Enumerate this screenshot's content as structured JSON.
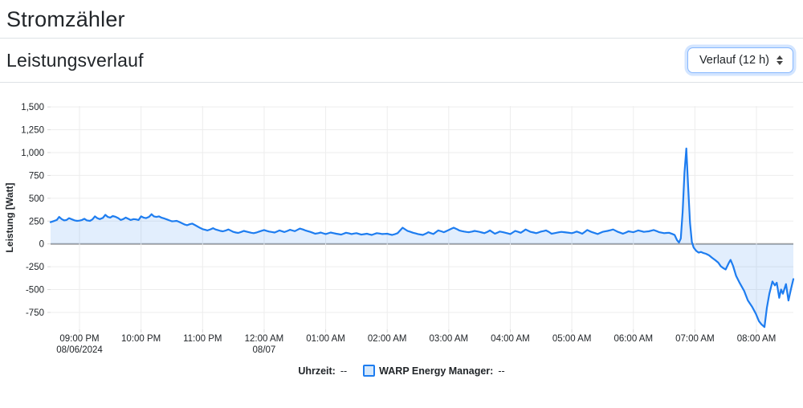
{
  "page": {
    "title": "Stromzähler"
  },
  "section": {
    "title": "Leistungsverlauf",
    "range_select": {
      "value": "Verlauf (12 h)"
    }
  },
  "chart_data": {
    "type": "area",
    "ylabel": "Leistung [Watt]",
    "ylim": [
      -935,
      1510
    ],
    "xlim_hours": [
      -0.47,
      11.6
    ],
    "grid": true,
    "zero_line": true,
    "colors": {
      "line": "#1e7df0",
      "fill": "rgba(30,125,240,0.13)",
      "legend_fill": "#d5e8fb",
      "grid": "#ededed",
      "zero_line": "#a3a3a3",
      "tick": "#d9d9d9"
    },
    "y_ticks": [
      {
        "value": 1500,
        "label": "1,500"
      },
      {
        "value": 1250,
        "label": "1,250"
      },
      {
        "value": 1000,
        "label": "1,000"
      },
      {
        "value": 750,
        "label": "750"
      },
      {
        "value": 500,
        "label": "500"
      },
      {
        "value": 250,
        "label": "250"
      },
      {
        "value": 0,
        "label": "0"
      },
      {
        "value": -250,
        "label": "-250"
      },
      {
        "value": -500,
        "label": "-500"
      },
      {
        "value": -750,
        "label": "-750"
      }
    ],
    "x_ticks": [
      {
        "h": 0,
        "label": "09:00 PM",
        "sub": "08/06/2024"
      },
      {
        "h": 1,
        "label": "10:00 PM"
      },
      {
        "h": 2,
        "label": "11:00 PM"
      },
      {
        "h": 3,
        "label": "12:00 AM",
        "sub": "08/07"
      },
      {
        "h": 4,
        "label": "01:00 AM"
      },
      {
        "h": 5,
        "label": "02:00 AM"
      },
      {
        "h": 6,
        "label": "03:00 AM"
      },
      {
        "h": 7,
        "label": "04:00 AM"
      },
      {
        "h": 8,
        "label": "05:00 AM"
      },
      {
        "h": 9,
        "label": "06:00 AM"
      },
      {
        "h": 10,
        "label": "07:00 AM"
      },
      {
        "h": 11,
        "label": "08:00 AM"
      }
    ],
    "legend": {
      "time_label": "Uhrzeit:",
      "time_value": "--",
      "series_label": "WARP Energy Manager:",
      "series_value": "--"
    },
    "series": [
      {
        "name": "WARP Energy Manager",
        "unit": "Watt",
        "points": [
          [
            -0.47,
            238
          ],
          [
            -0.42,
            250
          ],
          [
            -0.37,
            262
          ],
          [
            -0.33,
            295
          ],
          [
            -0.29,
            272
          ],
          [
            -0.25,
            258
          ],
          [
            -0.21,
            262
          ],
          [
            -0.17,
            282
          ],
          [
            -0.12,
            268
          ],
          [
            -0.08,
            258
          ],
          [
            -0.04,
            252
          ],
          [
            0,
            255
          ],
          [
            0.04,
            262
          ],
          [
            0.08,
            275
          ],
          [
            0.12,
            258
          ],
          [
            0.17,
            252
          ],
          [
            0.21,
            268
          ],
          [
            0.25,
            302
          ],
          [
            0.29,
            282
          ],
          [
            0.33,
            272
          ],
          [
            0.38,
            285
          ],
          [
            0.42,
            318
          ],
          [
            0.46,
            295
          ],
          [
            0.5,
            288
          ],
          [
            0.54,
            305
          ],
          [
            0.58,
            298
          ],
          [
            0.63,
            282
          ],
          [
            0.67,
            262
          ],
          [
            0.71,
            272
          ],
          [
            0.75,
            288
          ],
          [
            0.79,
            275
          ],
          [
            0.83,
            262
          ],
          [
            0.88,
            272
          ],
          [
            0.92,
            268
          ],
          [
            0.96,
            262
          ],
          [
            1,
            302
          ],
          [
            1.04,
            288
          ],
          [
            1.08,
            282
          ],
          [
            1.13,
            296
          ],
          [
            1.17,
            325
          ],
          [
            1.21,
            302
          ],
          [
            1.25,
            295
          ],
          [
            1.29,
            302
          ],
          [
            1.33,
            288
          ],
          [
            1.38,
            278
          ],
          [
            1.42,
            268
          ],
          [
            1.46,
            258
          ],
          [
            1.5,
            248
          ],
          [
            1.54,
            250
          ],
          [
            1.58,
            252
          ],
          [
            1.63,
            238
          ],
          [
            1.67,
            225
          ],
          [
            1.71,
            212
          ],
          [
            1.75,
            205
          ],
          [
            1.79,
            215
          ],
          [
            1.83,
            222
          ],
          [
            1.88,
            205
          ],
          [
            1.92,
            190
          ],
          [
            1.96,
            175
          ],
          [
            2,
            162
          ],
          [
            2.04,
            155
          ],
          [
            2.08,
            148
          ],
          [
            2.13,
            160
          ],
          [
            2.17,
            172
          ],
          [
            2.21,
            158
          ],
          [
            2.25,
            150
          ],
          [
            2.29,
            142
          ],
          [
            2.33,
            138
          ],
          [
            2.38,
            148
          ],
          [
            2.42,
            158
          ],
          [
            2.46,
            145
          ],
          [
            2.5,
            132
          ],
          [
            2.54,
            125
          ],
          [
            2.58,
            120
          ],
          [
            2.63,
            132
          ],
          [
            2.67,
            142
          ],
          [
            2.71,
            135
          ],
          [
            2.75,
            128
          ],
          [
            2.79,
            122
          ],
          [
            2.83,
            118
          ],
          [
            2.88,
            126
          ],
          [
            2.92,
            135
          ],
          [
            2.96,
            144
          ],
          [
            3,
            152
          ],
          [
            3.04,
            143
          ],
          [
            3.08,
            135
          ],
          [
            3.13,
            130
          ],
          [
            3.17,
            125
          ],
          [
            3.21,
            136
          ],
          [
            3.25,
            148
          ],
          [
            3.29,
            139
          ],
          [
            3.33,
            130
          ],
          [
            3.38,
            142
          ],
          [
            3.42,
            155
          ],
          [
            3.46,
            147
          ],
          [
            3.5,
            140
          ],
          [
            3.54,
            154
          ],
          [
            3.58,
            168
          ],
          [
            3.63,
            158
          ],
          [
            3.67,
            148
          ],
          [
            3.71,
            140
          ],
          [
            3.75,
            132
          ],
          [
            3.79,
            122
          ],
          [
            3.83,
            112
          ],
          [
            3.88,
            118
          ],
          [
            3.92,
            125
          ],
          [
            3.96,
            116
          ],
          [
            4,
            108
          ],
          [
            4.04,
            116
          ],
          [
            4.08,
            125
          ],
          [
            4.13,
            118
          ],
          [
            4.17,
            112
          ],
          [
            4.21,
            107
          ],
          [
            4.25,
            102
          ],
          [
            4.29,
            112
          ],
          [
            4.33,
            122
          ],
          [
            4.38,
            115
          ],
          [
            4.42,
            108
          ],
          [
            4.46,
            113
          ],
          [
            4.5,
            118
          ],
          [
            4.54,
            110
          ],
          [
            4.58,
            102
          ],
          [
            4.63,
            107
          ],
          [
            4.67,
            112
          ],
          [
            4.71,
            105
          ],
          [
            4.75,
            98
          ],
          [
            4.79,
            108
          ],
          [
            4.83,
            118
          ],
          [
            4.88,
            113
          ],
          [
            4.92,
            108
          ],
          [
            4.96,
            110
          ],
          [
            5,
            112
          ],
          [
            5.04,
            105
          ],
          [
            5.08,
            98
          ],
          [
            5.13,
            108
          ],
          [
            5.17,
            118
          ],
          [
            5.21,
            148
          ],
          [
            5.25,
            178
          ],
          [
            5.29,
            160
          ],
          [
            5.33,
            142
          ],
          [
            5.38,
            132
          ],
          [
            5.42,
            122
          ],
          [
            5.46,
            115
          ],
          [
            5.5,
            108
          ],
          [
            5.54,
            103
          ],
          [
            5.58,
            98
          ],
          [
            5.63,
            113
          ],
          [
            5.67,
            128
          ],
          [
            5.71,
            118
          ],
          [
            5.75,
            108
          ],
          [
            5.79,
            128
          ],
          [
            5.83,
            148
          ],
          [
            5.88,
            138
          ],
          [
            5.92,
            128
          ],
          [
            5.96,
            140
          ],
          [
            6,
            152
          ],
          [
            6.04,
            165
          ],
          [
            6.08,
            178
          ],
          [
            6.13,
            163
          ],
          [
            6.17,
            148
          ],
          [
            6.21,
            141
          ],
          [
            6.25,
            135
          ],
          [
            6.29,
            131
          ],
          [
            6.33,
            128
          ],
          [
            6.38,
            135
          ],
          [
            6.42,
            142
          ],
          [
            6.46,
            137
          ],
          [
            6.5,
            132
          ],
          [
            6.54,
            125
          ],
          [
            6.58,
            118
          ],
          [
            6.63,
            133
          ],
          [
            6.67,
            148
          ],
          [
            6.71,
            130
          ],
          [
            6.75,
            112
          ],
          [
            6.79,
            123
          ],
          [
            6.83,
            135
          ],
          [
            6.88,
            128
          ],
          [
            6.92,
            122
          ],
          [
            6.96,
            115
          ],
          [
            7,
            108
          ],
          [
            7.04,
            125
          ],
          [
            7.08,
            142
          ],
          [
            7.13,
            132
          ],
          [
            7.17,
            122
          ],
          [
            7.21,
            140
          ],
          [
            7.25,
            158
          ],
          [
            7.29,
            145
          ],
          [
            7.33,
            132
          ],
          [
            7.38,
            125
          ],
          [
            7.42,
            118
          ],
          [
            7.46,
            126
          ],
          [
            7.5,
            135
          ],
          [
            7.54,
            141
          ],
          [
            7.58,
            148
          ],
          [
            7.63,
            130
          ],
          [
            7.67,
            112
          ],
          [
            7.71,
            117
          ],
          [
            7.75,
            122
          ],
          [
            7.79,
            127
          ],
          [
            7.83,
            132
          ],
          [
            7.88,
            128
          ],
          [
            7.92,
            125
          ],
          [
            7.96,
            121
          ],
          [
            8,
            118
          ],
          [
            8.04,
            126
          ],
          [
            8.08,
            135
          ],
          [
            8.13,
            123
          ],
          [
            8.17,
            112
          ],
          [
            8.21,
            132
          ],
          [
            8.25,
            152
          ],
          [
            8.29,
            140
          ],
          [
            8.33,
            128
          ],
          [
            8.38,
            118
          ],
          [
            8.42,
            108
          ],
          [
            8.46,
            120
          ],
          [
            8.5,
            132
          ],
          [
            8.54,
            137
          ],
          [
            8.58,
            142
          ],
          [
            8.63,
            150
          ],
          [
            8.67,
            158
          ],
          [
            8.71,
            145
          ],
          [
            8.75,
            132
          ],
          [
            8.79,
            122
          ],
          [
            8.83,
            112
          ],
          [
            8.88,
            125
          ],
          [
            8.92,
            138
          ],
          [
            8.96,
            133
          ],
          [
            9,
            128
          ],
          [
            9.04,
            138
          ],
          [
            9.08,
            148
          ],
          [
            9.13,
            140
          ],
          [
            9.17,
            132
          ],
          [
            9.21,
            135
          ],
          [
            9.25,
            138
          ],
          [
            9.29,
            145
          ],
          [
            9.33,
            152
          ],
          [
            9.38,
            140
          ],
          [
            9.42,
            128
          ],
          [
            9.46,
            123
          ],
          [
            9.5,
            118
          ],
          [
            9.54,
            120
          ],
          [
            9.58,
            122
          ],
          [
            9.63,
            110
          ],
          [
            9.67,
            98
          ],
          [
            9.71,
            40
          ],
          [
            9.74,
            15
          ],
          [
            9.77,
            60
          ],
          [
            9.8,
            350
          ],
          [
            9.83,
            780
          ],
          [
            9.86,
            1045
          ],
          [
            9.89,
            620
          ],
          [
            9.92,
            230
          ],
          [
            9.95,
            20
          ],
          [
            9.98,
            -40
          ],
          [
            10.02,
            -75
          ],
          [
            10.06,
            -95
          ],
          [
            10.1,
            -88
          ],
          [
            10.14,
            -100
          ],
          [
            10.18,
            -108
          ],
          [
            10.23,
            -125
          ],
          [
            10.28,
            -152
          ],
          [
            10.33,
            -178
          ],
          [
            10.38,
            -205
          ],
          [
            10.42,
            -245
          ],
          [
            10.46,
            -265
          ],
          [
            10.5,
            -280
          ],
          [
            10.55,
            -210
          ],
          [
            10.58,
            -175
          ],
          [
            10.62,
            -240
          ],
          [
            10.67,
            -350
          ],
          [
            10.73,
            -430
          ],
          [
            10.8,
            -515
          ],
          [
            10.86,
            -618
          ],
          [
            10.93,
            -690
          ],
          [
            10.99,
            -765
          ],
          [
            11.04,
            -845
          ],
          [
            11.08,
            -880
          ],
          [
            11.13,
            -910
          ],
          [
            11.17,
            -700
          ],
          [
            11.21,
            -545
          ],
          [
            11.26,
            -412
          ],
          [
            11.3,
            -455
          ],
          [
            11.33,
            -425
          ],
          [
            11.37,
            -590
          ],
          [
            11.4,
            -500
          ],
          [
            11.43,
            -545
          ],
          [
            11.48,
            -440
          ],
          [
            11.52,
            -620
          ],
          [
            11.56,
            -500
          ],
          [
            11.6,
            -385
          ]
        ]
      }
    ]
  }
}
